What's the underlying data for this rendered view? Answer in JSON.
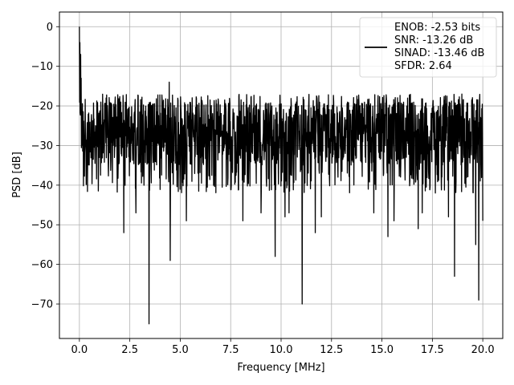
{
  "chart_data": {
    "type": "line",
    "title": "",
    "xlabel": "Frequency [MHz]",
    "ylabel": "PSD [dB]",
    "xlim": [
      -0.99,
      20.99
    ],
    "ylim": [
      -78.7,
      3.7
    ],
    "xticks": [
      0.0,
      2.5,
      5.0,
      7.5,
      10.0,
      12.5,
      15.0,
      17.5,
      20.0
    ],
    "xtick_labels": [
      "0.0",
      "2.5",
      "5.0",
      "7.5",
      "10.0",
      "12.5",
      "15.0",
      "17.5",
      "20.0"
    ],
    "yticks": [
      0,
      -10,
      -20,
      -30,
      -40,
      -50,
      -60,
      -70
    ],
    "ytick_labels": [
      "0",
      "−10",
      "−20",
      "−30",
      "−40",
      "−50",
      "−60",
      "−70"
    ],
    "grid": true,
    "legend_placement": "top-right",
    "line_color": "#000000",
    "series": [
      {
        "name": "ENOB: -2.53 bits\nSNR: -13.26 dB\nSINAD: -13.46 dB\nSFDR: 2.64",
        "x_range": [
          0.0,
          20.0
        ],
        "floor_mean": -27,
        "floor_upper": -20,
        "floor_lower": -36,
        "peaks": [
          {
            "x": 0.0,
            "y": 0
          },
          {
            "x": 0.02,
            "y": -4
          },
          {
            "x": 0.06,
            "y": -7
          },
          {
            "x": 0.09,
            "y": -13
          },
          {
            "x": 4.45,
            "y": -14
          }
        ],
        "dips": [
          {
            "x": 2.2,
            "y": -52
          },
          {
            "x": 2.8,
            "y": -47
          },
          {
            "x": 3.45,
            "y": -75
          },
          {
            "x": 4.5,
            "y": -59
          },
          {
            "x": 5.3,
            "y": -49
          },
          {
            "x": 8.1,
            "y": -49
          },
          {
            "x": 9.0,
            "y": -47
          },
          {
            "x": 9.7,
            "y": -58
          },
          {
            "x": 10.2,
            "y": -48
          },
          {
            "x": 10.4,
            "y": -47
          },
          {
            "x": 11.05,
            "y": -70
          },
          {
            "x": 11.7,
            "y": -52
          },
          {
            "x": 12.0,
            "y": -48
          },
          {
            "x": 14.6,
            "y": -47
          },
          {
            "x": 15.3,
            "y": -53
          },
          {
            "x": 15.6,
            "y": -49
          },
          {
            "x": 16.8,
            "y": -51
          },
          {
            "x": 17.0,
            "y": -47
          },
          {
            "x": 18.3,
            "y": -48
          },
          {
            "x": 18.6,
            "y": -63
          },
          {
            "x": 19.65,
            "y": -55
          },
          {
            "x": 19.8,
            "y": -69
          },
          {
            "x": 20.0,
            "y": -49
          }
        ]
      }
    ]
  }
}
